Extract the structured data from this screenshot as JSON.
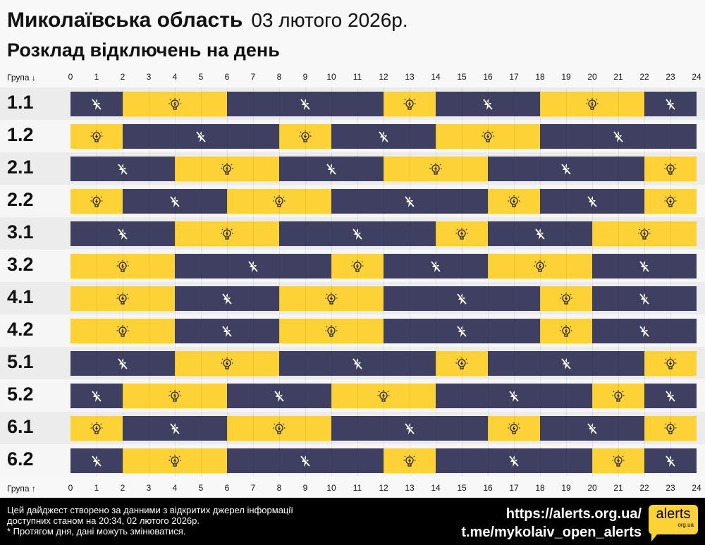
{
  "header": {
    "title": "Миколаївська область",
    "date": "03 лютого 2026р.",
    "subtitle": "Розклад відключень на день"
  },
  "axis": {
    "top_label": "Група ↓",
    "bottom_label": "Група ↑",
    "hours": [
      "0",
      "1",
      "2",
      "3",
      "4",
      "5",
      "6",
      "7",
      "8",
      "9",
      "10",
      "11",
      "12",
      "13",
      "14",
      "15",
      "16",
      "17",
      "18",
      "19",
      "20",
      "21",
      "22",
      "23",
      "24"
    ]
  },
  "colors": {
    "off": "#3f3f62",
    "on": "#fcd236"
  },
  "icons": {
    "off": "power-off-lightning-crossed-icon",
    "on": "lightbulb-icon"
  },
  "groups": [
    {
      "name": "1.1",
      "segments": [
        [
          "off",
          0,
          2
        ],
        [
          "on",
          2,
          6
        ],
        [
          "off",
          6,
          12
        ],
        [
          "on",
          12,
          14
        ],
        [
          "off",
          14,
          18
        ],
        [
          "on",
          18,
          22
        ],
        [
          "off",
          22,
          24
        ]
      ]
    },
    {
      "name": "1.2",
      "segments": [
        [
          "on",
          0,
          2
        ],
        [
          "off",
          2,
          8
        ],
        [
          "on",
          8,
          10
        ],
        [
          "off",
          10,
          14
        ],
        [
          "on",
          14,
          18
        ],
        [
          "off",
          18,
          24
        ]
      ]
    },
    {
      "name": "2.1",
      "segments": [
        [
          "off",
          0,
          4
        ],
        [
          "on",
          4,
          8
        ],
        [
          "off",
          8,
          12
        ],
        [
          "on",
          12,
          16
        ],
        [
          "off",
          16,
          22
        ],
        [
          "on",
          22,
          24
        ]
      ]
    },
    {
      "name": "2.2",
      "segments": [
        [
          "on",
          0,
          2
        ],
        [
          "off",
          2,
          6
        ],
        [
          "on",
          6,
          10
        ],
        [
          "off",
          10,
          16
        ],
        [
          "on",
          16,
          18
        ],
        [
          "off",
          18,
          22
        ],
        [
          "on",
          22,
          24
        ]
      ]
    },
    {
      "name": "3.1",
      "segments": [
        [
          "off",
          0,
          4
        ],
        [
          "on",
          4,
          8
        ],
        [
          "off",
          8,
          14
        ],
        [
          "on",
          14,
          16
        ],
        [
          "off",
          16,
          20
        ],
        [
          "on",
          20,
          24
        ]
      ]
    },
    {
      "name": "3.2",
      "segments": [
        [
          "on",
          0,
          4
        ],
        [
          "off",
          4,
          10
        ],
        [
          "on",
          10,
          12
        ],
        [
          "off",
          12,
          16
        ],
        [
          "on",
          16,
          20
        ],
        [
          "off",
          20,
          24
        ]
      ]
    },
    {
      "name": "4.1",
      "segments": [
        [
          "on",
          0,
          4
        ],
        [
          "off",
          4,
          8
        ],
        [
          "on",
          8,
          12
        ],
        [
          "off",
          12,
          18
        ],
        [
          "on",
          18,
          20
        ],
        [
          "off",
          20,
          24
        ]
      ]
    },
    {
      "name": "4.2",
      "segments": [
        [
          "on",
          0,
          4
        ],
        [
          "off",
          4,
          8
        ],
        [
          "on",
          8,
          12
        ],
        [
          "off",
          12,
          18
        ],
        [
          "on",
          18,
          20
        ],
        [
          "off",
          20,
          24
        ]
      ]
    },
    {
      "name": "5.1",
      "segments": [
        [
          "off",
          0,
          4
        ],
        [
          "on",
          4,
          8
        ],
        [
          "off",
          8,
          14
        ],
        [
          "on",
          14,
          16
        ],
        [
          "off",
          16,
          22
        ],
        [
          "on",
          22,
          24
        ]
      ]
    },
    {
      "name": "5.2",
      "segments": [
        [
          "off",
          0,
          2
        ],
        [
          "on",
          2,
          6
        ],
        [
          "off",
          6,
          10
        ],
        [
          "on",
          10,
          14
        ],
        [
          "off",
          14,
          20
        ],
        [
          "on",
          20,
          22
        ],
        [
          "off",
          22,
          24
        ]
      ]
    },
    {
      "name": "6.1",
      "segments": [
        [
          "on",
          0,
          2
        ],
        [
          "off",
          2,
          6
        ],
        [
          "on",
          6,
          10
        ],
        [
          "off",
          10,
          16
        ],
        [
          "on",
          16,
          18
        ],
        [
          "off",
          18,
          22
        ],
        [
          "on",
          22,
          24
        ]
      ]
    },
    {
      "name": "6.2",
      "segments": [
        [
          "off",
          0,
          2
        ],
        [
          "on",
          2,
          6
        ],
        [
          "off",
          6,
          12
        ],
        [
          "on",
          12,
          14
        ],
        [
          "off",
          14,
          20
        ],
        [
          "on",
          20,
          22
        ],
        [
          "off",
          22,
          24
        ]
      ]
    }
  ],
  "footer": {
    "info_line1": "Цей дайджест створено за данними з відкритих джерел інформації",
    "info_line2": "доступних станом на 20:34, 02 лютого 2026р.",
    "info_line3": "* Протягом дня, дані можуть змінюватися.",
    "link_site": "https://alerts.org.ua/",
    "link_telegram": "t.me/mykolaiv_open_alerts",
    "logo_text": "alerts",
    "logo_subtext": "org.ua"
  }
}
